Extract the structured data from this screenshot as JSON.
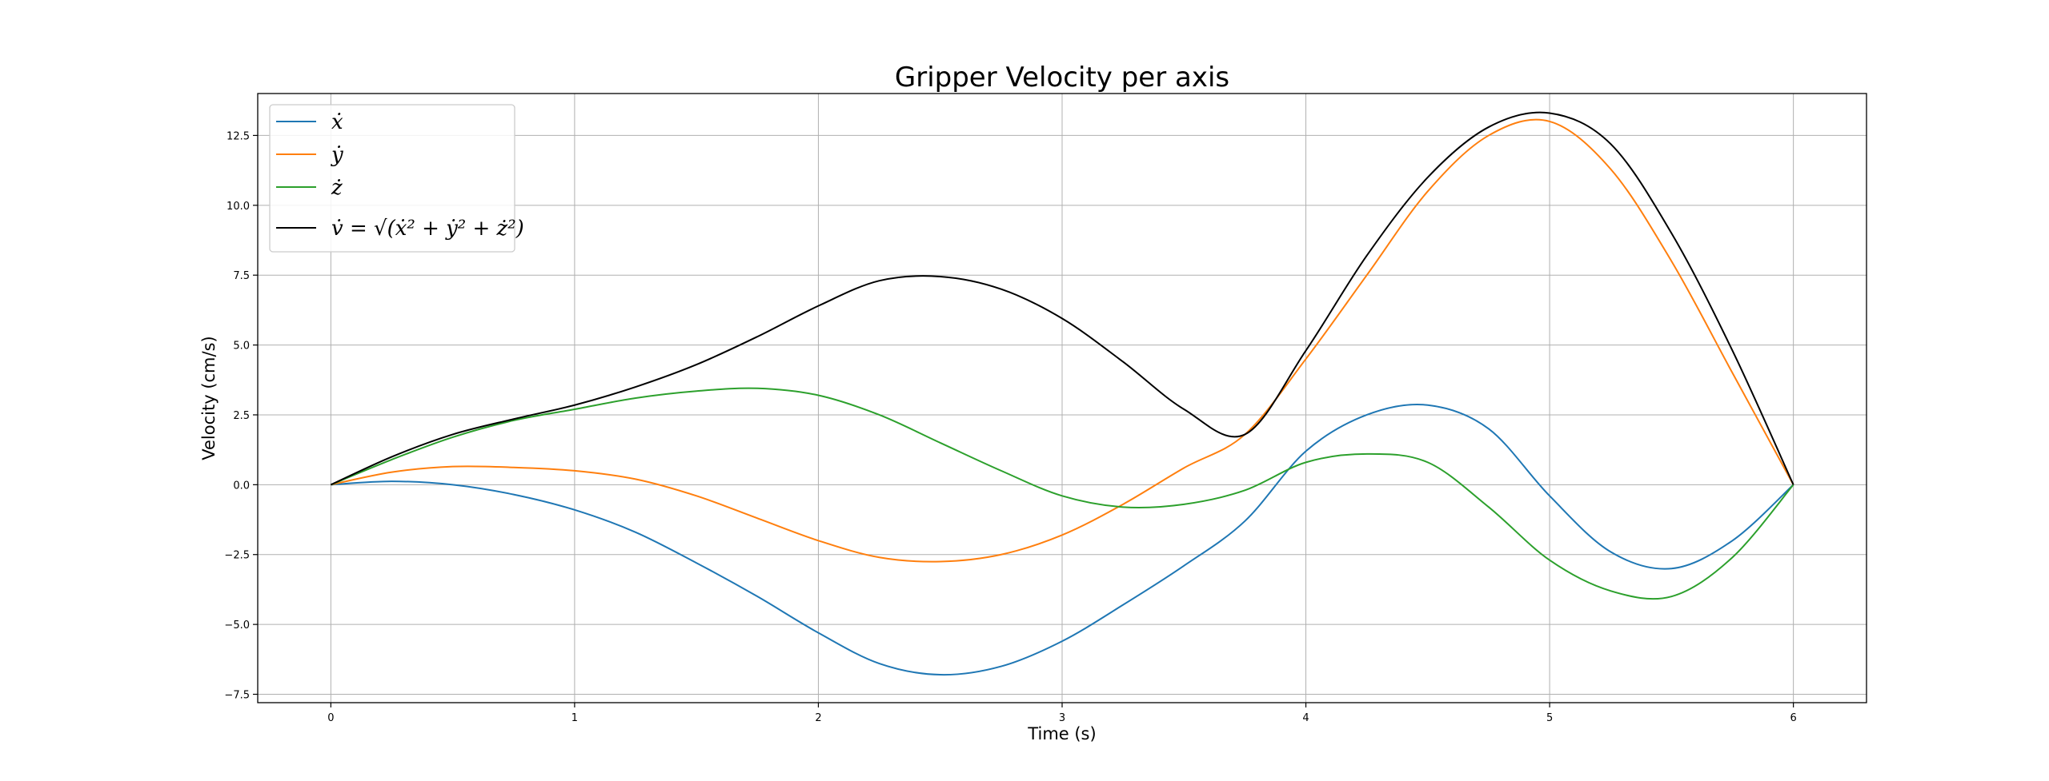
{
  "chart_data": {
    "type": "line",
    "title": "Gripper Velocity per axis",
    "xlabel": "Time (s)",
    "ylabel": "Velocity (cm/s)",
    "xlim": [
      -0.3,
      6.3
    ],
    "ylim": [
      -7.8,
      14.0
    ],
    "xticks": [
      0,
      1,
      2,
      3,
      4,
      5,
      6
    ],
    "xtick_labels": [
      "0",
      "1",
      "2",
      "3",
      "4",
      "5",
      "6"
    ],
    "yticks": [
      -7.5,
      -5.0,
      -2.5,
      0.0,
      2.5,
      5.0,
      7.5,
      10.0,
      12.5
    ],
    "ytick_labels": [
      "−7.5",
      "−5.0",
      "−2.5",
      "0.0",
      "2.5",
      "5.0",
      "7.5",
      "10.0",
      "12.5"
    ],
    "grid": true,
    "legend_position": "top-left",
    "x": [
      0,
      0.25,
      0.5,
      0.75,
      1,
      1.25,
      1.5,
      1.75,
      2,
      2.25,
      2.5,
      2.75,
      3,
      3.25,
      3.5,
      3.75,
      4,
      4.25,
      4.5,
      4.75,
      5,
      5.25,
      5.5,
      5.75,
      6
    ],
    "series": [
      {
        "name": "ẋ",
        "color": "#1f77b4",
        "values": [
          0,
          0.12,
          0,
          -0.35,
          -0.9,
          -1.7,
          -2.8,
          -4.0,
          -5.3,
          -6.4,
          -6.8,
          -6.5,
          -5.6,
          -4.3,
          -2.9,
          -1.3,
          1.2,
          2.5,
          2.85,
          2.0,
          -0.4,
          -2.4,
          -3.0,
          -2.0,
          0
        ]
      },
      {
        "name": "ẏ",
        "color": "#ff7f0e",
        "values": [
          0,
          0.45,
          0.65,
          0.62,
          0.5,
          0.2,
          -0.4,
          -1.2,
          -2.0,
          -2.6,
          -2.75,
          -2.5,
          -1.8,
          -0.7,
          0.6,
          1.8,
          4.5,
          7.5,
          10.5,
          12.5,
          13.0,
          11.3,
          8.0,
          4.0,
          0
        ]
      },
      {
        "name": "ż",
        "color": "#2ca02c",
        "values": [
          0,
          0.9,
          1.7,
          2.3,
          2.7,
          3.1,
          3.35,
          3.45,
          3.2,
          2.5,
          1.5,
          0.5,
          -0.4,
          -0.8,
          -0.7,
          -0.2,
          0.8,
          1.1,
          0.8,
          -0.8,
          -2.7,
          -3.8,
          -4.0,
          -2.6,
          0
        ]
      },
      {
        "name": "v̇ = √(ẋ² + ẏ² + ż²)",
        "color": "#000000",
        "values": [
          0,
          1.0,
          1.8,
          2.35,
          2.85,
          3.5,
          4.3,
          5.3,
          6.4,
          7.3,
          7.45,
          7.0,
          5.95,
          4.4,
          2.7,
          1.8,
          4.8,
          8.2,
          11.0,
          12.8,
          13.3,
          12.2,
          9.0,
          4.8,
          0
        ]
      }
    ]
  }
}
